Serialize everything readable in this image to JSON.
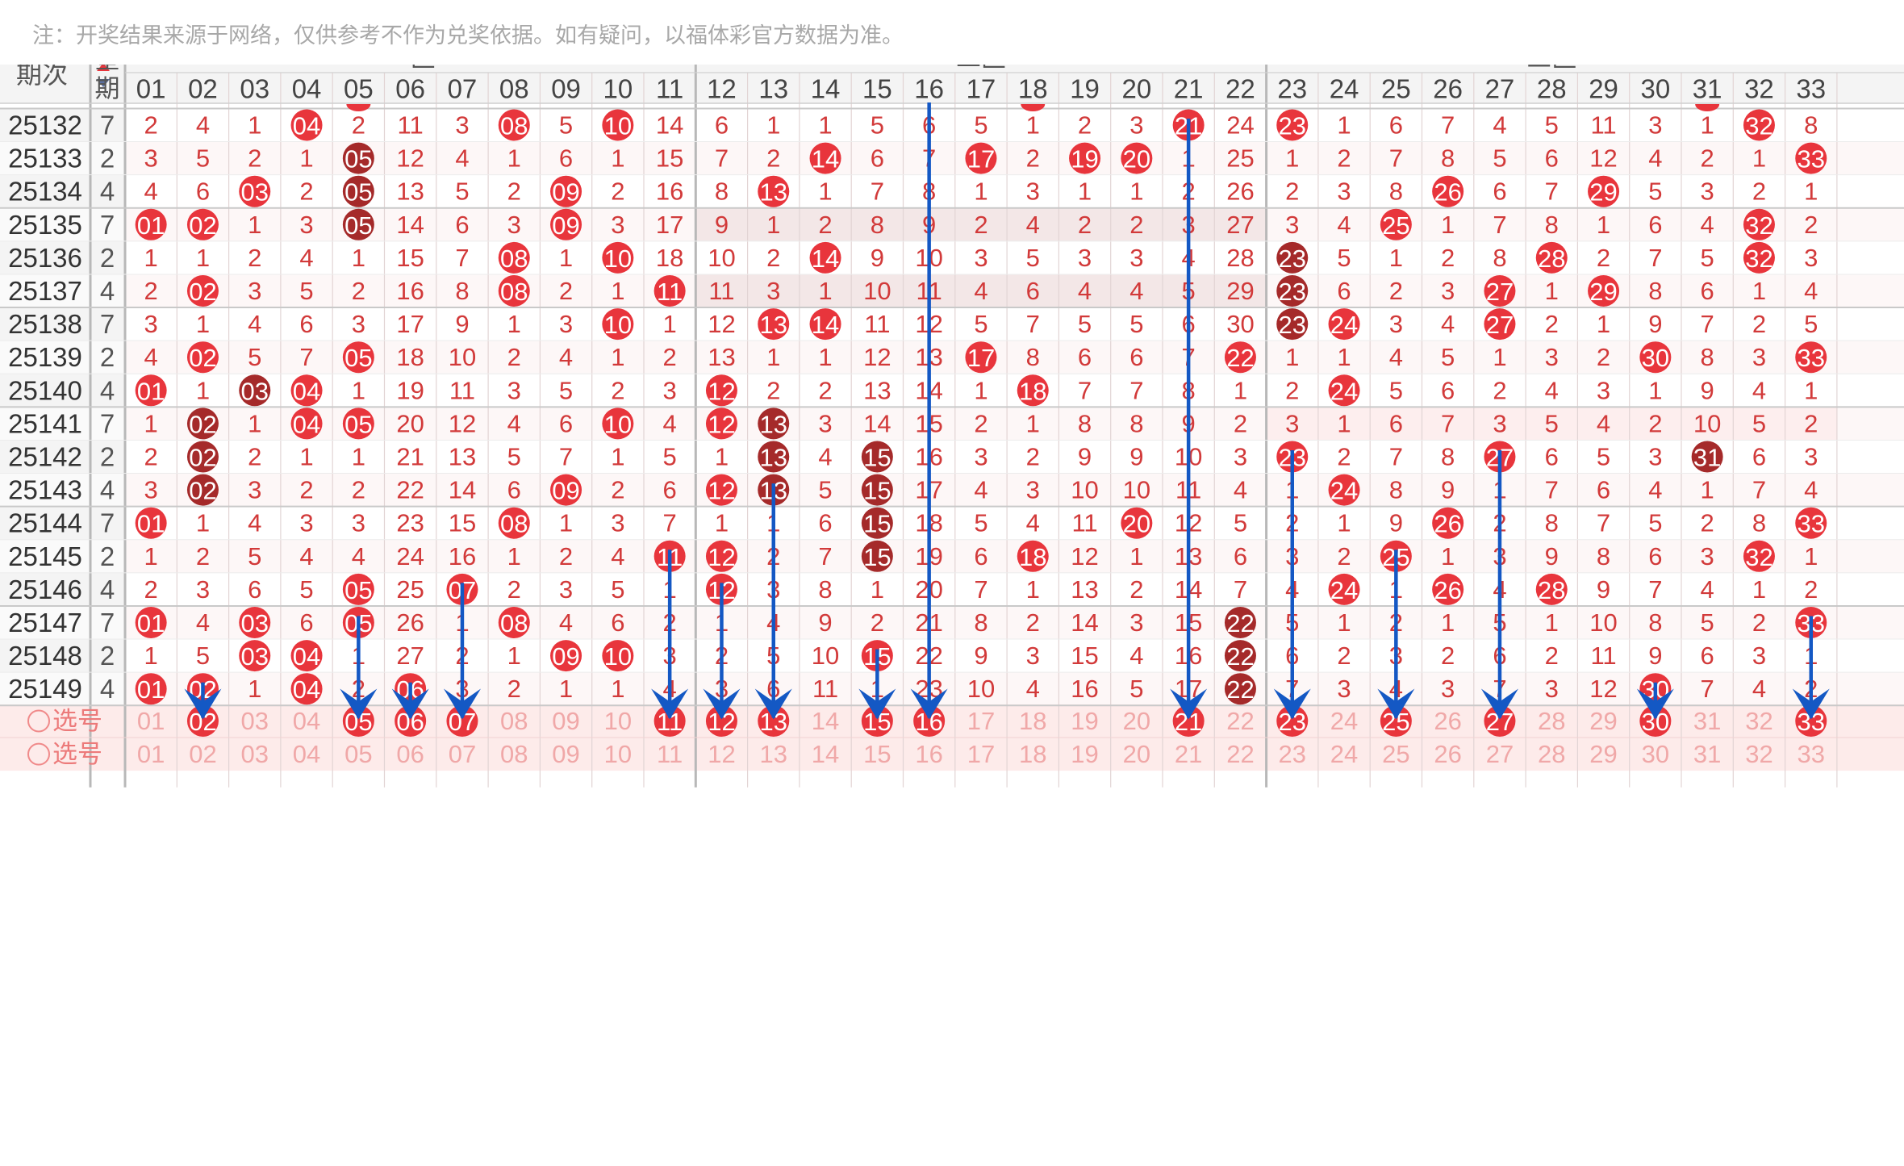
{
  "note": "注：开奖结果来源于网络，仅供参考不作为兑奖依据。如有疑问，以福体彩官方数据为准。",
  "header": {
    "period_label": "期次",
    "weekday_label": "星期",
    "zones": [
      {
        "label": "一区",
        "start": 1,
        "end": 11
      },
      {
        "label": "二区",
        "start": 12,
        "end": 22
      },
      {
        "label": "三区",
        "start": 23,
        "end": 33
      }
    ],
    "columns": [
      "01",
      "02",
      "03",
      "04",
      "05",
      "06",
      "07",
      "08",
      "09",
      "10",
      "11",
      "12",
      "13",
      "14",
      "15",
      "16",
      "17",
      "18",
      "19",
      "20",
      "21",
      "22",
      "23",
      "24",
      "25",
      "26",
      "27",
      "28",
      "29",
      "30",
      "31",
      "32",
      "33"
    ]
  },
  "colors": {
    "red_ball": "#e8353c",
    "dark_ball": "#a52a2a",
    "cell_text": "#d23a3a",
    "period_text": "#333333",
    "arrow": "#1458c4",
    "select_row_bg": "#fdebea",
    "highlight_row_bg": "#f3e7e7"
  },
  "rows": [
    {
      "period": "25132",
      "weekday": "7",
      "cells": [
        "2",
        "4",
        "1",
        "04",
        "2",
        "11",
        "3",
        "08",
        "5",
        "10",
        "14",
        "6",
        "1",
        "1",
        "5",
        "6",
        "5",
        "1",
        "2",
        "3",
        "21",
        "24",
        "23",
        "1",
        "6",
        "7",
        "4",
        "5",
        "11",
        "3",
        "1",
        "32",
        "8"
      ],
      "hits": [
        4,
        8,
        10,
        21,
        23,
        32
      ],
      "dark": []
    },
    {
      "period": "25133",
      "weekday": "2",
      "cells": [
        "3",
        "5",
        "2",
        "1",
        "05",
        "12",
        "4",
        "1",
        "6",
        "1",
        "15",
        "7",
        "2",
        "14",
        "6",
        "7",
        "17",
        "2",
        "19",
        "20",
        "1",
        "25",
        "1",
        "2",
        "7",
        "8",
        "5",
        "6",
        "12",
        "4",
        "2",
        "1",
        "33"
      ],
      "hits": [
        5,
        14,
        17,
        19,
        20,
        33
      ],
      "dark": [
        5
      ]
    },
    {
      "period": "25134",
      "weekday": "4",
      "cells": [
        "4",
        "6",
        "03",
        "2",
        "05",
        "13",
        "5",
        "2",
        "09",
        "2",
        "16",
        "8",
        "13",
        "1",
        "7",
        "8",
        "1",
        "3",
        "1",
        "1",
        "2",
        "26",
        "2",
        "3",
        "8",
        "26",
        "6",
        "7",
        "29",
        "5",
        "3",
        "2",
        "1"
      ],
      "hits": [
        3,
        5,
        9,
        13,
        26,
        29
      ],
      "dark": [
        5
      ]
    },
    {
      "period": "25135",
      "weekday": "7",
      "cells": [
        "01",
        "02",
        "1",
        "3",
        "05",
        "14",
        "6",
        "3",
        "09",
        "3",
        "17",
        "9",
        "1",
        "2",
        "8",
        "9",
        "2",
        "4",
        "2",
        "2",
        "3",
        "27",
        "3",
        "4",
        "25",
        "1",
        "7",
        "8",
        "1",
        "6",
        "4",
        "32",
        "2"
      ],
      "hits": [
        1,
        2,
        5,
        9,
        25,
        32
      ],
      "dark": [
        5
      ]
    },
    {
      "period": "25136",
      "weekday": "2",
      "cells": [
        "1",
        "1",
        "2",
        "4",
        "1",
        "15",
        "7",
        "08",
        "1",
        "10",
        "18",
        "10",
        "2",
        "14",
        "9",
        "10",
        "3",
        "5",
        "3",
        "3",
        "4",
        "28",
        "23",
        "5",
        "1",
        "2",
        "8",
        "28",
        "2",
        "7",
        "5",
        "32",
        "3"
      ],
      "hits": [
        8,
        10,
        14,
        23,
        28,
        32
      ],
      "dark": [
        23
      ]
    },
    {
      "period": "25137",
      "weekday": "4",
      "cells": [
        "2",
        "02",
        "3",
        "5",
        "2",
        "16",
        "8",
        "08",
        "2",
        "1",
        "11",
        "11",
        "3",
        "1",
        "10",
        "11",
        "4",
        "6",
        "4",
        "4",
        "5",
        "29",
        "23",
        "6",
        "2",
        "3",
        "27",
        "1",
        "29",
        "8",
        "6",
        "1",
        "4"
      ],
      "hits": [
        2,
        8,
        11,
        23,
        27,
        29
      ],
      "dark": [
        23
      ]
    },
    {
      "period": "25138",
      "weekday": "7",
      "cells": [
        "3",
        "1",
        "4",
        "6",
        "3",
        "17",
        "9",
        "1",
        "3",
        "10",
        "1",
        "12",
        "13",
        "14",
        "11",
        "12",
        "5",
        "7",
        "5",
        "5",
        "6",
        "30",
        "23",
        "24",
        "3",
        "4",
        "27",
        "2",
        "1",
        "9",
        "7",
        "2",
        "5"
      ],
      "hits": [
        10,
        13,
        14,
        23,
        24,
        27
      ],
      "dark": [
        23
      ]
    },
    {
      "period": "25139",
      "weekday": "2",
      "cells": [
        "4",
        "02",
        "5",
        "7",
        "05",
        "18",
        "10",
        "2",
        "4",
        "1",
        "2",
        "13",
        "1",
        "1",
        "12",
        "13",
        "17",
        "8",
        "6",
        "6",
        "7",
        "22",
        "1",
        "1",
        "4",
        "5",
        "1",
        "3",
        "2",
        "30",
        "8",
        "3",
        "33"
      ],
      "hits": [
        2,
        5,
        17,
        22,
        30,
        33
      ],
      "dark": []
    },
    {
      "period": "25140",
      "weekday": "4",
      "cells": [
        "01",
        "1",
        "03",
        "04",
        "1",
        "19",
        "11",
        "3",
        "5",
        "2",
        "3",
        "12",
        "2",
        "2",
        "13",
        "14",
        "1",
        "18",
        "7",
        "7",
        "8",
        "1",
        "2",
        "24",
        "5",
        "6",
        "2",
        "4",
        "3",
        "1",
        "9",
        "4",
        "1"
      ],
      "hits": [
        1,
        3,
        4,
        12,
        18,
        24
      ],
      "dark": [
        3
      ]
    },
    {
      "period": "25141",
      "weekday": "7",
      "cells": [
        "1",
        "02",
        "1",
        "04",
        "05",
        "20",
        "12",
        "4",
        "6",
        "10",
        "4",
        "12",
        "13",
        "3",
        "14",
        "15",
        "2",
        "1",
        "8",
        "8",
        "9",
        "2",
        "3",
        "1",
        "6",
        "7",
        "3",
        "5",
        "4",
        "2",
        "10",
        "5",
        "2"
      ],
      "hits": [
        2,
        4,
        5,
        10,
        12,
        13
      ],
      "dark": [
        2,
        13
      ]
    },
    {
      "period": "25142",
      "weekday": "2",
      "cells": [
        "2",
        "02",
        "2",
        "1",
        "1",
        "21",
        "13",
        "5",
        "7",
        "1",
        "5",
        "1",
        "13",
        "4",
        "15",
        "16",
        "3",
        "2",
        "9",
        "9",
        "10",
        "3",
        "23",
        "2",
        "7",
        "8",
        "27",
        "6",
        "5",
        "3",
        "31",
        "6",
        "3"
      ],
      "hits": [
        2,
        13,
        15,
        23,
        27,
        31
      ],
      "dark": [
        2,
        13,
        15,
        31
      ]
    },
    {
      "period": "25143",
      "weekday": "4",
      "cells": [
        "3",
        "02",
        "3",
        "2",
        "2",
        "22",
        "14",
        "6",
        "09",
        "2",
        "6",
        "12",
        "13",
        "5",
        "15",
        "17",
        "4",
        "3",
        "10",
        "10",
        "11",
        "4",
        "1",
        "24",
        "8",
        "9",
        "1",
        "7",
        "6",
        "4",
        "1",
        "7",
        "4"
      ],
      "hits": [
        2,
        9,
        12,
        13,
        15,
        24
      ],
      "dark": [
        2,
        13,
        15
      ]
    },
    {
      "period": "25144",
      "weekday": "7",
      "cells": [
        "01",
        "1",
        "4",
        "3",
        "3",
        "23",
        "15",
        "08",
        "1",
        "3",
        "7",
        "1",
        "1",
        "6",
        "15",
        "18",
        "5",
        "4",
        "11",
        "20",
        "12",
        "5",
        "2",
        "1",
        "9",
        "26",
        "2",
        "8",
        "7",
        "5",
        "2",
        "8",
        "33"
      ],
      "hits": [
        1,
        8,
        15,
        20,
        26,
        33
      ],
      "dark": [
        15
      ]
    },
    {
      "period": "25145",
      "weekday": "2",
      "cells": [
        "1",
        "2",
        "5",
        "4",
        "4",
        "24",
        "16",
        "1",
        "2",
        "4",
        "11",
        "12",
        "2",
        "7",
        "15",
        "19",
        "6",
        "18",
        "12",
        "1",
        "13",
        "6",
        "3",
        "2",
        "25",
        "1",
        "3",
        "9",
        "8",
        "6",
        "3",
        "32",
        "1"
      ],
      "hits": [
        11,
        12,
        15,
        18,
        25,
        32
      ],
      "dark": [
        15
      ]
    },
    {
      "period": "25146",
      "weekday": "4",
      "cells": [
        "2",
        "3",
        "6",
        "5",
        "05",
        "25",
        "07",
        "2",
        "3",
        "5",
        "1",
        "12",
        "3",
        "8",
        "1",
        "20",
        "7",
        "1",
        "13",
        "2",
        "14",
        "7",
        "4",
        "24",
        "1",
        "26",
        "4",
        "28",
        "9",
        "7",
        "4",
        "1",
        "2"
      ],
      "hits": [
        5,
        7,
        12,
        24,
        26,
        28
      ],
      "dark": []
    },
    {
      "period": "25147",
      "weekday": "7",
      "cells": [
        "01",
        "4",
        "03",
        "6",
        "05",
        "26",
        "1",
        "08",
        "4",
        "6",
        "2",
        "1",
        "4",
        "9",
        "2",
        "21",
        "8",
        "2",
        "14",
        "3",
        "15",
        "22",
        "5",
        "1",
        "2",
        "1",
        "5",
        "1",
        "10",
        "8",
        "5",
        "2",
        "33"
      ],
      "hits": [
        1,
        3,
        5,
        8,
        22,
        33
      ],
      "dark": [
        22
      ]
    },
    {
      "period": "25148",
      "weekday": "2",
      "cells": [
        "1",
        "5",
        "03",
        "04",
        "1",
        "27",
        "2",
        "1",
        "09",
        "10",
        "3",
        "2",
        "5",
        "10",
        "15",
        "22",
        "9",
        "3",
        "15",
        "4",
        "16",
        "22",
        "6",
        "2",
        "3",
        "2",
        "6",
        "2",
        "11",
        "9",
        "6",
        "3",
        "1"
      ],
      "hits": [
        3,
        4,
        9,
        10,
        15,
        22
      ],
      "dark": [
        22
      ]
    },
    {
      "period": "25149",
      "weekday": "4",
      "cells": [
        "01",
        "02",
        "1",
        "04",
        "2",
        "06",
        "3",
        "2",
        "1",
        "1",
        "4",
        "3",
        "6",
        "11",
        "1",
        "23",
        "10",
        "4",
        "16",
        "5",
        "17",
        "22",
        "7",
        "3",
        "4",
        "3",
        "7",
        "3",
        "12",
        "30",
        "7",
        "4",
        "2"
      ],
      "hits": [
        1,
        2,
        4,
        6,
        22,
        30
      ],
      "dark": [
        22
      ]
    }
  ],
  "select_rows": [
    {
      "label": "选号",
      "selected": [
        2,
        5,
        6,
        7,
        11,
        12,
        13,
        15,
        16,
        21,
        23,
        25,
        27,
        30,
        33
      ]
    },
    {
      "label": "选号",
      "selected": []
    }
  ],
  "arrows": [
    {
      "col": 2,
      "from_period": "25149"
    },
    {
      "col": 5,
      "from_period": "25147"
    },
    {
      "col": 6,
      "from_period": "25149"
    },
    {
      "col": 7,
      "from_period": "25146"
    },
    {
      "col": 11,
      "from_period": "25145"
    },
    {
      "col": 12,
      "from_period": "25146"
    },
    {
      "col": 13,
      "from_period": "25143"
    },
    {
      "col": 15,
      "from_period": "25148"
    },
    {
      "col": 16,
      "from_period": "25131"
    },
    {
      "col": 21,
      "from_period": "25132"
    },
    {
      "col": 23,
      "from_period": "25142"
    },
    {
      "col": 25,
      "from_period": "25145"
    },
    {
      "col": 27,
      "from_period": "25142"
    },
    {
      "col": 30,
      "from_period": "25149"
    },
    {
      "col": 33,
      "from_period": "25147"
    }
  ]
}
